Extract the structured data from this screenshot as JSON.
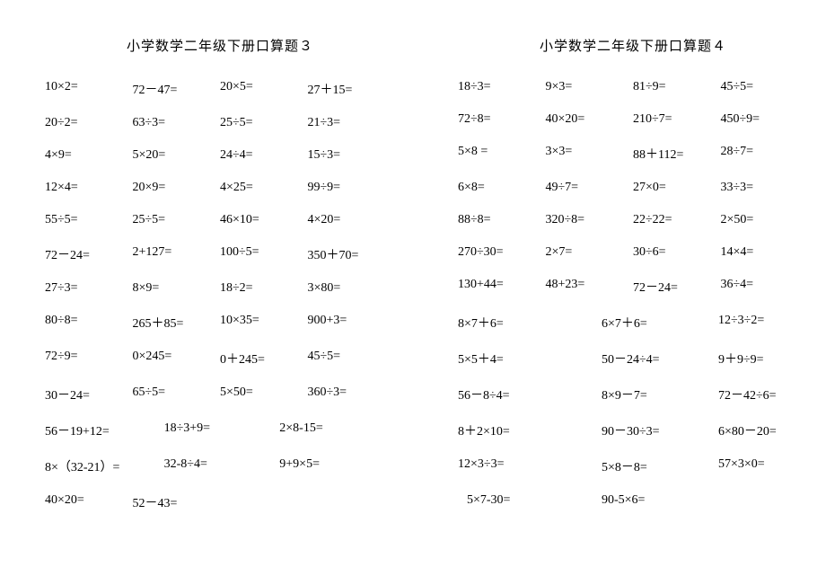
{
  "left": {
    "title": "小学数学二年级下册口算题３",
    "rows4": [
      [
        "10×2=",
        "72－47=",
        "20×5=",
        "27＋15="
      ],
      [
        "20÷2=",
        "63÷3=",
        "25÷5=",
        "21÷3="
      ],
      [
        "4×9=",
        "5×20=",
        "24÷4=",
        "15÷3="
      ],
      [
        "12×4=",
        "20×9=",
        "4×25=",
        "99÷9="
      ],
      [
        "55÷5=",
        "25÷5=",
        "46×10=",
        "4×20="
      ],
      [
        "72－24=",
        "2+127=",
        "100÷5=",
        "350＋70="
      ],
      [
        "27÷3=",
        "8×9=",
        "18÷2=",
        "3×80="
      ],
      [
        "80÷8=",
        "265＋85=",
        "10×35=",
        "900+3="
      ],
      [
        "72÷9=",
        "0×245=",
        "0＋245=",
        "45÷5="
      ],
      [
        "30－24=",
        "65÷5=",
        "5×50=",
        "360÷3="
      ]
    ],
    "rows3": [
      [
        "56－19+12=",
        "18÷3+9=",
        "2×8-15="
      ],
      [
        "8×（32-21）=",
        "32-8÷4=",
        "9+9×5="
      ]
    ],
    "rows2": [
      [
        "40×20=",
        "52－43="
      ]
    ]
  },
  "right": {
    "title": "小学数学二年级下册口算题４",
    "rows4": [
      [
        "18÷3=",
        "9×3=",
        "81÷9=",
        "45÷5="
      ],
      [
        "72÷8=",
        "40×20=",
        "210÷7=",
        "450÷9="
      ],
      [
        "5×8 =",
        "3×3=",
        "88＋112=",
        "28÷7="
      ],
      [
        "6×8=",
        "49÷7=",
        "27×0=",
        "33÷3="
      ],
      [
        "88÷8=",
        "320÷8=",
        "22÷22=",
        "2×50="
      ],
      [
        "270÷30=",
        "2×7=",
        "30÷6=",
        "14×4="
      ],
      [
        "130+44=",
        "48+23=",
        "72－24=",
        "36÷4="
      ]
    ],
    "rows3": [
      [
        "8×7＋6=",
        "6×7＋6=",
        "12÷3÷2="
      ],
      [
        "5×5＋4=",
        "50－24÷4=",
        "9＋9÷9="
      ],
      [
        "56－8÷4=",
        "8×9－7=",
        "72－42÷6="
      ],
      [
        "8＋2×10=",
        "90－30÷3=",
        "6×80－20="
      ],
      [
        "12×3÷3=",
        "5×8－8=",
        "57×3×0="
      ]
    ],
    "rows2": [
      [
        "5×7-30=",
        "90-5×6="
      ]
    ]
  },
  "style": {
    "font_family": "SimSun",
    "bg": "#ffffff",
    "text_color": "#000000",
    "title_fontsize": 15,
    "body_fontsize": 14
  }
}
